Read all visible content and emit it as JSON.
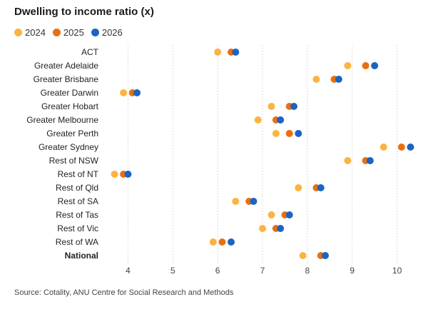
{
  "chart_data": {
    "type": "scatter",
    "title": "Dwelling to income ratio (x)",
    "categories": [
      "ACT",
      "Greater Adelaide",
      "Greater Brisbane",
      "Greater Darwin",
      "Greater Hobart",
      "Greater Melbourne",
      "Greater Perth",
      "Greater Sydney",
      "Rest of NSW",
      "Rest of NT",
      "Rest of Qld",
      "Rest of SA",
      "Rest of Tas",
      "Rest of Vic",
      "Rest of WA",
      "National"
    ],
    "bold_categories": [
      "National"
    ],
    "series": [
      {
        "name": "2024",
        "color": "#fbb341",
        "values": [
          6.0,
          8.9,
          8.2,
          3.9,
          7.2,
          6.9,
          7.3,
          9.7,
          8.9,
          3.7,
          7.8,
          6.4,
          7.2,
          7.0,
          5.9,
          7.9
        ]
      },
      {
        "name": "2025",
        "color": "#e8700f",
        "values": [
          6.3,
          9.3,
          8.6,
          4.1,
          7.6,
          7.3,
          7.6,
          10.1,
          9.3,
          3.9,
          8.2,
          6.7,
          7.5,
          7.3,
          6.1,
          8.3
        ]
      },
      {
        "name": "2026",
        "color": "#1c64c2",
        "values": [
          6.4,
          9.5,
          8.7,
          4.2,
          7.7,
          7.4,
          7.8,
          10.3,
          9.4,
          4.0,
          8.3,
          6.8,
          7.6,
          7.4,
          6.3,
          8.4
        ]
      }
    ],
    "x_ticks": [
      4,
      5,
      6,
      7,
      8,
      9,
      10
    ],
    "xlim": [
      3.5,
      10.5
    ],
    "xlabel": "",
    "ylabel": "",
    "grid": true,
    "legend_position": "top-left"
  },
  "source": "Source: Cotality, ANU Centre for Social Research and Methods"
}
